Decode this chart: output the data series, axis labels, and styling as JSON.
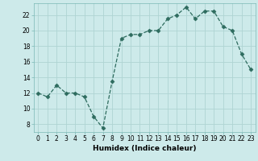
{
  "x": [
    0,
    1,
    2,
    3,
    4,
    5,
    6,
    7,
    8,
    9,
    10,
    11,
    12,
    13,
    14,
    15,
    16,
    17,
    18,
    19,
    20,
    21,
    22,
    23
  ],
  "y": [
    12,
    11.5,
    13,
    12,
    12,
    11.5,
    9,
    7.5,
    13.5,
    19,
    19.5,
    19.5,
    20,
    20,
    21.5,
    22,
    23,
    21.5,
    22.5,
    22.5,
    20.5,
    20,
    17,
    15
  ],
  "line_color": "#2d6b5e",
  "marker": "D",
  "markersize": 2.5,
  "linewidth": 0.9,
  "linestyle": "--",
  "background_color": "#cdeaea",
  "grid_color": "#afd4d3",
  "xlabel": "Humidex (Indice chaleur)",
  "xlabel_fontsize": 6.5,
  "tick_fontsize": 5.5,
  "xlim": [
    -0.5,
    23.5
  ],
  "ylim": [
    7,
    23.5
  ],
  "yticks": [
    8,
    10,
    12,
    14,
    16,
    18,
    20,
    22
  ],
  "xticks": [
    0,
    1,
    2,
    3,
    4,
    5,
    6,
    7,
    8,
    9,
    10,
    11,
    12,
    13,
    14,
    15,
    16,
    17,
    18,
    19,
    20,
    21,
    22,
    23
  ]
}
